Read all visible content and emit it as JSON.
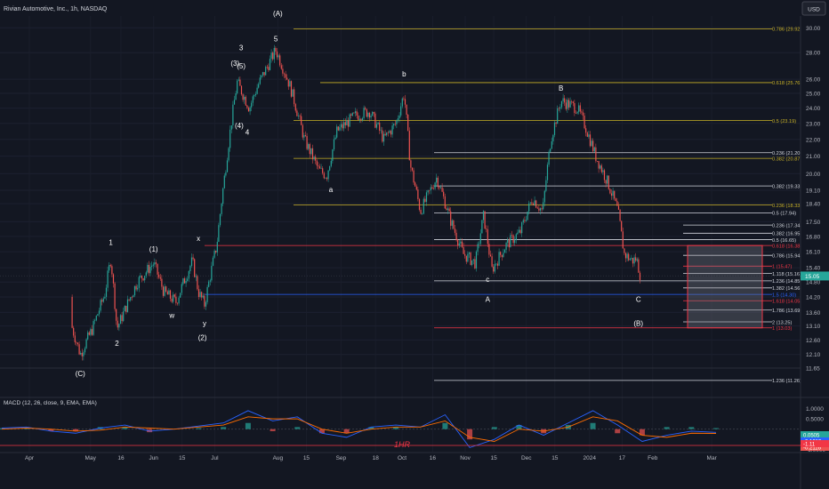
{
  "header": {
    "symbol_title": "Rivian Automotive, Inc., 1h, NASDAQ",
    "currency_button": "USD"
  },
  "colors": {
    "background": "#131722",
    "up": "#26a69a",
    "down": "#ef5350",
    "gold": "#c9b227",
    "white": "#d1d4dc",
    "blue": "#2962ff",
    "red": "#f23645",
    "macd": "#2962ff",
    "signal": "#ff6d00",
    "price_tag": "#26a69a"
  },
  "chart_data": [
    {
      "type": "candlestick",
      "title": "Rivian Automotive, Inc., 1h, NASDAQ",
      "x_ticks": [
        "Apr",
        "May",
        "16",
        "Jun",
        "15",
        "Jul",
        "Aug",
        "15",
        "Sep",
        "18",
        "Oct",
        "16",
        "Nov",
        "15",
        "Dec",
        "15",
        "2024",
        "17",
        "Feb",
        "Mar"
      ],
      "y_ticks": [
        11.65,
        12.1,
        12.6,
        13.1,
        13.6,
        14.2,
        14.8,
        15.4,
        16.1,
        16.8,
        17.5,
        18.4,
        19.1,
        20.0,
        21.0,
        22.0,
        23.0,
        24.0,
        25.0,
        26.0,
        28.0,
        30.0
      ],
      "ylim": [
        11.2,
        31.0
      ],
      "price_path": [
        {
          "x": "Mar 28",
          "y": 14.2
        },
        {
          "x": "Apr 6",
          "y": 15.0
        },
        {
          "x": "Apr 13",
          "y": 14.6
        },
        {
          "x": "Apr 20",
          "y": 13.5
        },
        {
          "x": "Apr 26",
          "y": 12.1
        },
        {
          "x": "May 2",
          "y": 13.0
        },
        {
          "x": "May 8",
          "y": 14.3
        },
        {
          "x": "May 11",
          "y": 15.8
        },
        {
          "x": "May 14",
          "y": 13.0
        },
        {
          "x": "May 24",
          "y": 14.8
        },
        {
          "x": "Jun 1",
          "y": 15.6
        },
        {
          "x": "Jun 6",
          "y": 14.4
        },
        {
          "x": "Jun 12",
          "y": 14.0
        },
        {
          "x": "Jun 20",
          "y": 15.7
        },
        {
          "x": "Jun 23",
          "y": 14.4
        },
        {
          "x": "Jun 26",
          "y": 13.9
        },
        {
          "x": "Jul 2",
          "y": 16.4
        },
        {
          "x": "Jul 6",
          "y": 20.0
        },
        {
          "x": "Jul 12",
          "y": 25.8
        },
        {
          "x": "Jul 18",
          "y": 24.0
        },
        {
          "x": "Jul 22",
          "y": 25.5
        },
        {
          "x": "Jul 27",
          "y": 27.0
        },
        {
          "x": "Jul 31",
          "y": 28.2
        },
        {
          "x": "Aug 7",
          "y": 25.5
        },
        {
          "x": "Aug 14",
          "y": 22.0
        },
        {
          "x": "Aug 21",
          "y": 20.2
        },
        {
          "x": "Aug 25",
          "y": 19.9
        },
        {
          "x": "Aug 30",
          "y": 22.5
        },
        {
          "x": "Sep 8",
          "y": 23.5
        },
        {
          "x": "Sep 15",
          "y": 23.8
        },
        {
          "x": "Sep 22",
          "y": 22.0
        },
        {
          "x": "Sep 28",
          "y": 23.0
        },
        {
          "x": "Oct 2",
          "y": 25.0
        },
        {
          "x": "Oct 5",
          "y": 20.5
        },
        {
          "x": "Oct 10",
          "y": 18.0
        },
        {
          "x": "Oct 18",
          "y": 19.8
        },
        {
          "x": "Oct 25",
          "y": 17.5
        },
        {
          "x": "Oct 31",
          "y": 16.0
        },
        {
          "x": "Nov 6",
          "y": 15.6
        },
        {
          "x": "Nov 10",
          "y": 17.8
        },
        {
          "x": "Nov 14",
          "y": 15.3
        },
        {
          "x": "Nov 21",
          "y": 16.4
        },
        {
          "x": "Nov 28",
          "y": 17.0
        },
        {
          "x": "Dec 4",
          "y": 18.7
        },
        {
          "x": "Dec 9",
          "y": 18.0
        },
        {
          "x": "Dec 13",
          "y": 22.0
        },
        {
          "x": "Dec 18",
          "y": 24.5
        },
        {
          "x": "Dec 26",
          "y": 24.0
        },
        {
          "x": "Dec 30",
          "y": 22.8
        },
        {
          "x": "Jan 4",
          "y": 21.0
        },
        {
          "x": "Jan 10",
          "y": 19.5
        },
        {
          "x": "Jan 15",
          "y": 18.0
        },
        {
          "x": "Jan 18",
          "y": 16.0
        },
        {
          "x": "Jan 22",
          "y": 15.7
        },
        {
          "x": "Jan 24",
          "y": 15.8
        },
        {
          "x": "Jan 26",
          "y": 15.05
        }
      ],
      "fib_levels": [
        {
          "label": "0.786 (29.92)",
          "price": 29.92,
          "color": "gold"
        },
        {
          "label": "0.618 (25.76)",
          "price": 25.76,
          "color": "gold"
        },
        {
          "label": "0.5 (23.19)",
          "price": 23.19,
          "color": "gold"
        },
        {
          "label": "0.236 (21.20)",
          "price": 21.2,
          "color": "white"
        },
        {
          "label": "0.382 (20.87)",
          "price": 20.87,
          "color": "gold"
        },
        {
          "label": "0.382 (19.33)",
          "price": 19.33,
          "color": "white"
        },
        {
          "label": "0.236 (18.33)",
          "price": 18.33,
          "color": "gold"
        },
        {
          "label": "0.5 (17.94)",
          "price": 17.94,
          "color": "white"
        },
        {
          "label": "0.236 (17.34)",
          "price": 17.34,
          "color": "white"
        },
        {
          "label": "0.382 (16.95)",
          "price": 16.95,
          "color": "white"
        },
        {
          "label": "0.5 (16.65)",
          "price": 16.65,
          "color": "white"
        },
        {
          "label": "0.618 (16.38)",
          "price": 16.38,
          "color": "red"
        },
        {
          "label": "0.786 (15.94)",
          "price": 15.94,
          "color": "white"
        },
        {
          "label": "1 (15.47)",
          "price": 15.47,
          "color": "red"
        },
        {
          "label": "1.118 (15.16)",
          "price": 15.16,
          "color": "white"
        },
        {
          "label": "1.236 (14.85)",
          "price": 14.85,
          "color": "white"
        },
        {
          "label": "1.382 (14.56)",
          "price": 14.56,
          "color": "white"
        },
        {
          "label": "1.5 (14.30)",
          "price": 14.3,
          "color": "blue"
        },
        {
          "label": "1.618 (14.05)",
          "price": 14.05,
          "color": "red"
        },
        {
          "label": "1.786 (13.69)",
          "price": 13.69,
          "color": "white"
        },
        {
          "label": "2 (13.25)",
          "price": 13.25,
          "color": "white"
        },
        {
          "label": "1 (13.03)",
          "price": 13.03,
          "color": "red"
        },
        {
          "label": "1.236 (11.26)",
          "price": 11.26,
          "color": "white"
        }
      ],
      "wave_labels": [
        {
          "text": "(A)",
          "x": "Aug 1",
          "y": 31.0
        },
        {
          "text": "5",
          "x": "Jul 31",
          "y": 28.9
        },
        {
          "text": "3",
          "x": "Jul 14",
          "y": 28.2
        },
        {
          "text": "(3)",
          "x": "Jul 11",
          "y": 27.0
        },
        {
          "text": "(5)",
          "x": "Jul 14",
          "y": 26.8
        },
        {
          "text": "(4)",
          "x": "Jul 13",
          "y": 22.7
        },
        {
          "text": "4",
          "x": "Jul 17",
          "y": 22.3
        },
        {
          "text": "a",
          "x": "Aug 27",
          "y": 19.0
        },
        {
          "text": "b",
          "x": "Oct 2",
          "y": 26.2
        },
        {
          "text": "c",
          "x": "Nov 12",
          "y": 14.8
        },
        {
          "text": "A",
          "x": "Nov 12",
          "y": 14.0
        },
        {
          "text": "B",
          "x": "Dec 18",
          "y": 25.2
        },
        {
          "text": "C",
          "x": "Jan 25",
          "y": 14.0
        },
        {
          "text": "(B)",
          "x": "Jan 25",
          "y": 13.1
        },
        {
          "text": "x",
          "x": "Jun 23",
          "y": 16.6
        },
        {
          "text": "y",
          "x": "Jun 26",
          "y": 13.1
        },
        {
          "text": "w",
          "x": "Jun 10",
          "y": 13.4
        },
        {
          "text": "1",
          "x": "May 11",
          "y": 16.4
        },
        {
          "text": "(1)",
          "x": "Jun 1",
          "y": 16.1
        },
        {
          "text": "2",
          "x": "May 14",
          "y": 12.4
        },
        {
          "text": "(2)",
          "x": "Jun 25",
          "y": 12.6
        },
        {
          "text": "(C)",
          "x": "Apr 26",
          "y": 11.4
        }
      ],
      "current_price": "15.05",
      "marker_text": "1HR"
    },
    {
      "type": "line",
      "title": "MACD (12, 26, close, 9, EMA, EMA)",
      "y_ticks": [
        "1.0000",
        "0.5000",
        "-0.5000",
        "-1.0000"
      ],
      "ylim": [
        -1.1,
        1.2
      ],
      "series": [
        {
          "name": "MACD",
          "values": [
            0.05,
            0.1,
            -0.1,
            -0.2,
            0.05,
            0.2,
            -0.1,
            0.0,
            0.15,
            0.3,
            0.9,
            0.4,
            0.6,
            -0.2,
            -0.4,
            0.1,
            0.2,
            0.1,
            0.7,
            -0.9,
            -0.5,
            0.2,
            -0.3,
            0.3,
            0.9,
            0.2,
            -0.6,
            -0.3,
            -0.1,
            -0.16
          ]
        },
        {
          "name": "Signal",
          "values": [
            0.0,
            0.05,
            0.0,
            -0.1,
            -0.05,
            0.1,
            0.05,
            0.0,
            0.1,
            0.2,
            0.6,
            0.5,
            0.5,
            0.0,
            -0.2,
            0.0,
            0.1,
            0.1,
            0.4,
            -0.4,
            -0.6,
            0.0,
            -0.1,
            0.1,
            0.6,
            0.4,
            -0.3,
            -0.4,
            -0.2,
            -0.21
          ]
        }
      ],
      "value_tags": [
        "0.0505",
        "-0.1613",
        "-0.2116",
        "-1.11"
      ]
    }
  ]
}
